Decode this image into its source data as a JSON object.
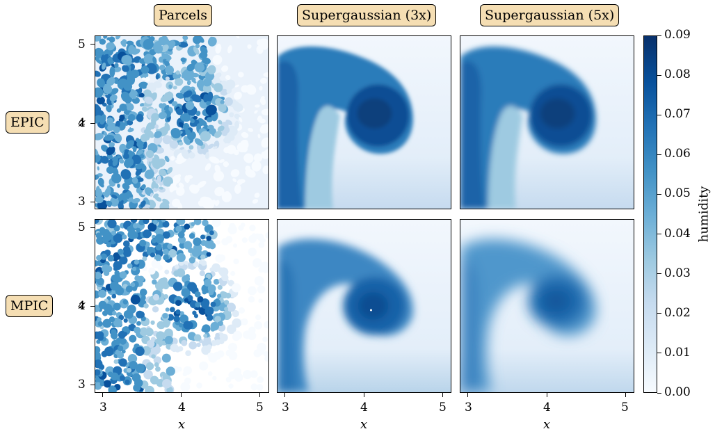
{
  "column_titles": [
    "Parcels",
    "Supergaussian (3x)",
    "Supergaussian (5x)"
  ],
  "row_titles": [
    "EPIC",
    "MPIC"
  ],
  "xlabel": "x",
  "ylabel": "z",
  "colorbar": {
    "label": "humidity",
    "ticks": [
      "0.00",
      "0.01",
      "0.02",
      "0.03",
      "0.04",
      "0.05",
      "0.06",
      "0.07",
      "0.08",
      "0.09"
    ],
    "colormap": "Blues",
    "colors": [
      "#f7fbff",
      "#deebf7",
      "#c6dbef",
      "#9ecae1",
      "#6baed6",
      "#4292c6",
      "#2171b5",
      "#08519c",
      "#08306b"
    ]
  },
  "chart_data": {
    "type": "heatmap",
    "grid": "2x3",
    "x_ticks": [
      "3",
      "4",
      "5"
    ],
    "y_ticks": [
      "3",
      "4",
      "5"
    ],
    "xlim": [
      2.9,
      5.1
    ],
    "ylim": [
      2.9,
      5.1
    ],
    "vlim": [
      0.0,
      0.09
    ],
    "panels": [
      {
        "row": "EPIC",
        "col": "Parcels"
      },
      {
        "row": "EPIC",
        "col": "Supergaussian (3x)"
      },
      {
        "row": "EPIC",
        "col": "Supergaussian (5x)"
      },
      {
        "row": "MPIC",
        "col": "Parcels"
      },
      {
        "row": "MPIC",
        "col": "Supergaussian (3x)"
      },
      {
        "row": "MPIC",
        "col": "Supergaussian (5x)"
      }
    ]
  }
}
